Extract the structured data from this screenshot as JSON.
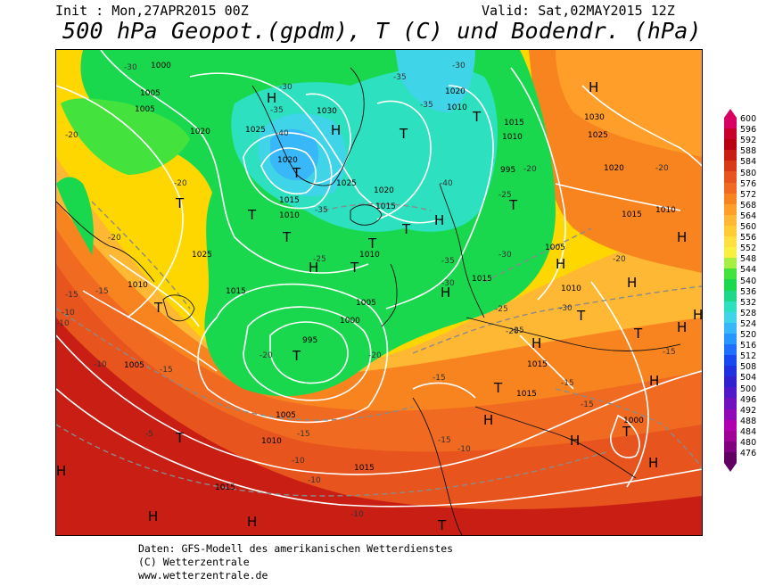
{
  "header": {
    "init": "Init : Mon,27APR2015 00Z",
    "valid": "Valid: Sat,02MAY2015 12Z",
    "title": "500 hPa Geopot.(gpdm), T (C) und Bodendr. (hPa)"
  },
  "colors": {
    "high_geopot": "#c4000f",
    "orange": "#ff8c00",
    "yellow": "#ffd700",
    "green": "#22cc22",
    "cyan": "#55dddd",
    "blue": "#3399ff"
  },
  "legend": {
    "levels": [
      "600",
      "596",
      "592",
      "588",
      "584",
      "580",
      "576",
      "572",
      "568",
      "564",
      "560",
      "556",
      "552",
      "548",
      "544",
      "540",
      "536",
      "532",
      "528",
      "524",
      "520",
      "516",
      "512",
      "508",
      "504",
      "500",
      "496",
      "492",
      "488",
      "484",
      "480",
      "476"
    ],
    "colors": [
      "#d80060",
      "#c8002c",
      "#b80010",
      "#c81e14",
      "#d83a18",
      "#e8541e",
      "#f06a22",
      "#f88420",
      "#ff9e28",
      "#ffb834",
      "#ffcc36",
      "#ffe040",
      "#f8f040",
      "#a8ee44",
      "#44e23c",
      "#1ad84e",
      "#1cd888",
      "#2ce0c0",
      "#40d4e8",
      "#38b8f8",
      "#2896ff",
      "#2070ff",
      "#1848f0",
      "#2030e0",
      "#3020d0",
      "#5018c8",
      "#7010c0",
      "#9008b8",
      "#b000b0",
      "#a00098",
      "#800080",
      "#600060"
    ]
  },
  "map_labels": {
    "isobars": [
      "1000",
      "1005",
      "1010",
      "1010",
      "1010",
      "1010",
      "1010",
      "1010",
      "1010",
      "1010",
      "1015",
      "1015",
      "1015",
      "1015",
      "1015",
      "1015",
      "1015",
      "1015",
      "1015",
      "1015",
      "1020",
      "1020",
      "1020",
      "1020",
      "1020",
      "1025",
      "1025",
      "1025",
      "1025",
      "1030",
      "1030",
      "1005",
      "1005",
      "1005",
      "1005",
      "1000",
      "995",
      "1005",
      "1000"
    ],
    "temps": [
      "-30",
      "-35",
      "-35",
      "-40",
      "-35",
      "-40",
      "-35",
      "-30",
      "-25",
      "-25",
      "-30",
      "-30",
      "-25",
      "-20",
      "-20",
      "-20",
      "-20",
      "-15",
      "-15",
      "-15",
      "-10",
      "-10",
      "-10",
      "-10",
      "-15",
      "-15",
      "-10",
      "-10",
      "-10",
      "-5",
      "-20",
      "-20",
      "-20",
      "-20",
      "-15",
      "-15",
      "-15",
      "-20",
      "-25",
      "-30",
      "-35",
      "-30",
      "-15"
    ],
    "highs_lows": [
      "H",
      "H",
      "T",
      "T",
      "T",
      "T",
      "H",
      "T",
      "T",
      "H",
      "T",
      "H",
      "T",
      "H",
      "T",
      "H",
      "H",
      "H",
      "T",
      "H",
      "T",
      "H",
      "H",
      "T",
      "T",
      "H",
      "H",
      "T",
      "H",
      "H",
      "T",
      "H",
      "T",
      "T",
      "H",
      "H",
      "T"
    ]
  },
  "footer": {
    "line1": "Daten: GFS-Modell des amerikanischen Wetterdienstes",
    "line2": "(C) Wetterzentrale",
    "line3": "www.wetterzentrale.de"
  }
}
